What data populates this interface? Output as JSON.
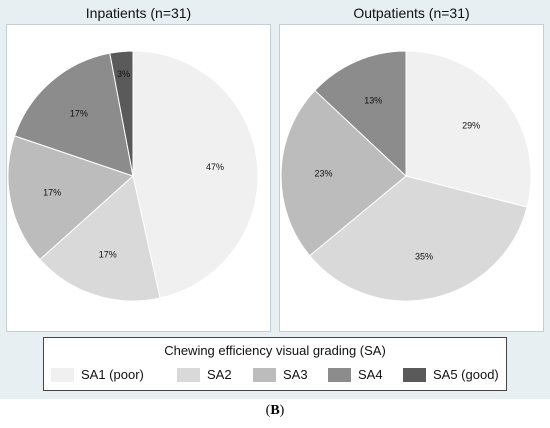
{
  "chart_data": [
    {
      "type": "pie",
      "title": "Inpatients (n=31)",
      "categories": [
        "SA1 (poor)",
        "SA2",
        "SA3",
        "SA4",
        "SA5 (good)"
      ],
      "values": [
        47,
        17,
        17,
        17,
        3
      ],
      "labels": [
        "47%",
        "17%",
        "17%",
        "17%",
        "3%"
      ]
    },
    {
      "type": "pie",
      "title": "Outpatients (n=31)",
      "categories": [
        "SA1 (poor)",
        "SA2",
        "SA3",
        "SA4"
      ],
      "values": [
        29,
        35,
        23,
        13
      ],
      "labels": [
        "29%",
        "35%",
        "23%",
        "13%"
      ]
    }
  ],
  "legend": {
    "title": "Chewing efficiency visual grading (SA)",
    "items": [
      {
        "label": "SA1 (poor)",
        "color": "#f0f0f0"
      },
      {
        "label": "SA2",
        "color": "#d9d9d9"
      },
      {
        "label": "SA3",
        "color": "#bcbcbc"
      },
      {
        "label": "SA4",
        "color": "#8c8c8c"
      },
      {
        "label": "SA5 (good)",
        "color": "#5a5a5a"
      }
    ]
  },
  "caption": {
    "open": "(",
    "letter": "B",
    "close": ")"
  }
}
